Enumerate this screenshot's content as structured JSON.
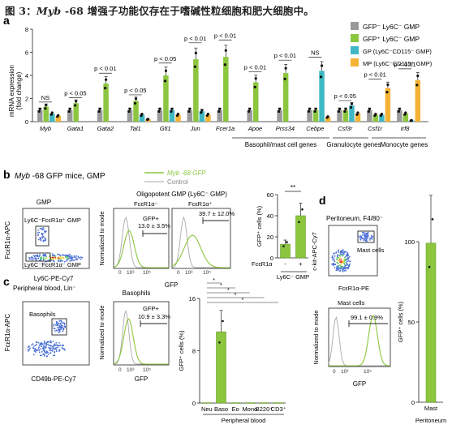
{
  "caption": {
    "prefix": "图 3：",
    "gene": "Myb",
    "suffix": " -68 增强子功能仅存在于嗜碱性粒细胞和肥大细胞中。"
  },
  "panel_labels": [
    "a",
    "b",
    "c",
    "d"
  ],
  "panel_a": {
    "ylabel": "mRNA expression",
    "ylabel2": "(fold change)",
    "legend": [
      {
        "label": "GFP⁻ Ly6C⁻ GMP",
        "color": "#9a9a9a"
      },
      {
        "label": "GFP⁺ Ly6C⁻ GMP",
        "color": "#8cc63f"
      },
      {
        "label": "GP (Ly6C⁻CD115⁻ GMP)",
        "color": "#3fb8c4"
      },
      {
        "label": "MP (Ly6C⁻CD115⁺ GMP)",
        "color": "#f5b335"
      }
    ],
    "groups": [
      {
        "label": "Basophil/mast cell genes"
      },
      {
        "label": "Granulocyte genes"
      },
      {
        "label": "Monocyte genes"
      }
    ]
  },
  "chart_data": [
    {
      "type": "bar",
      "panel": "a",
      "ylabel": "mRNA expression (fold change)",
      "ylim": [
        0,
        8
      ],
      "yticks": [
        0,
        2,
        4,
        6,
        8
      ],
      "categories": [
        "Myb",
        "Gata1",
        "Gata2",
        "Tal1",
        "Gfi1",
        "Jun",
        "Fcer1a",
        "Apoe",
        "Prss34",
        "Cebpe",
        "Csf3r",
        "Csf1r",
        "Irf8"
      ],
      "series": [
        {
          "name": "GFP⁻ Ly6C⁻ GMP",
          "values": [
            1,
            1,
            1,
            1,
            1,
            1,
            1,
            1,
            1,
            1,
            1,
            1,
            1
          ]
        },
        {
          "name": "GFP⁺ Ly6C⁻ GMP",
          "values": [
            1.3,
            1.6,
            3.3,
            1.8,
            4.0,
            5.4,
            5.6,
            3.4,
            4.2,
            1.0,
            1.0,
            0.6,
            0.7
          ]
        },
        {
          "name": "GP (Ly6C⁻CD115⁻ GMP)",
          "values": [
            0.7,
            null,
            null,
            0.6,
            1.0,
            0.9,
            null,
            null,
            null,
            4.4,
            1.4,
            0.6,
            0.1
          ]
        },
        {
          "name": "MP (Ly6C⁻CD115⁺ GMP)",
          "values": [
            0.5,
            null,
            null,
            0.2,
            0.6,
            0.6,
            null,
            null,
            null,
            0.4,
            0.7,
            2.9,
            3.6
          ]
        }
      ],
      "annotations": [
        "NS",
        "p < 0.05",
        "p < 0.01",
        "p < 0.05",
        "p < 0.05",
        "p < 0.01",
        "p < 0.01",
        "p < 0.01",
        "p < 0.01",
        "NS",
        "p < 0.05",
        "p < 0.01",
        "p < 0.01"
      ]
    },
    {
      "type": "bar",
      "panel": "b",
      "title": "",
      "ylabel": "GFP⁺ cells (%)",
      "ylim": [
        0,
        60
      ],
      "yticks": [
        0,
        20,
        40,
        60
      ],
      "categories": [
        "-",
        "+"
      ],
      "xrow_label": "FcεR1α",
      "xgroup": "Ly6C⁻ GMP",
      "values": [
        13,
        40
      ],
      "annotations": [
        "**"
      ]
    },
    {
      "type": "bar",
      "panel": "c",
      "ylabel": "GFP⁺ cells (%)",
      "ylim": [
        0,
        16
      ],
      "yticks": [
        0,
        8,
        16
      ],
      "categories": [
        "Neu",
        "Baso",
        "Eo",
        "Mono",
        "B220⁺",
        "CD3⁺"
      ],
      "xgroup": "Peripheral blood",
      "values": [
        0.05,
        10.9,
        0.05,
        0.05,
        0.05,
        0.05
      ],
      "annotations": [
        "*",
        "*",
        "*",
        "*",
        "*"
      ]
    },
    {
      "type": "bar",
      "panel": "d",
      "ylabel": "GFP⁺ cells (%)",
      "ylim": [
        0,
        100
      ],
      "yticks": [
        0,
        50,
        100
      ],
      "categories": [
        "Mast"
      ],
      "xgroup": "Peritoneum",
      "values": [
        99.1
      ]
    }
  ],
  "panel_b": {
    "title_gene": "Myb",
    "title_rest": " -68 GFP mice, GMP",
    "legend_gfp": "Myb -68 GFP",
    "legend_control": "Control",
    "gmp_title": "GMP",
    "gate1": "Ly6C⁻FcεR1α⁺ GMP",
    "gate2": "Ly6C⁻FcεR1α⁻ GMP",
    "y_axis": "FcεR1α-APC",
    "x_axis": "Ly6C-PE-Cy7",
    "hist_title": "Oligopotent GMP (Ly6C⁻ GMP)",
    "hist_sub1": "FcεR1α⁻",
    "hist_sub2": "FcεR1α⁺",
    "hist_gfp": "GFP+",
    "hist_val1": "13.0 ± 3.5%",
    "hist_val2": "39.7 ± 12.0%",
    "hist_ylabel": "Normalized to mode",
    "hist_xlabel": "GFP"
  },
  "panel_c": {
    "title": "Peripheral blood, Lin⁻",
    "gate": "Basophils",
    "y_axis": "FcεR1α-APC",
    "x_axis": "CD49b-PE-Cy7",
    "hist_title": "Basophils",
    "hist_gfp": "GFP+",
    "hist_val": "10.9 ± 3.3%",
    "hist_ylabel": "Normalized to mode",
    "hist_xlabel": "GFP"
  },
  "panel_d": {
    "title": "Peritoneum, F4/80⁻",
    "gate": "Mast cells",
    "y_axis": "c-kit-APC-Cy7",
    "x_axis": "FcεR1α-PE",
    "hist_title": "Mast cells",
    "hist_val": "99.1 ± 0.9%",
    "hist_ylabel": "Normalized to mode",
    "hist_xlabel": "GFP"
  },
  "colors": {
    "gray": "#9a9a9a",
    "green": "#8cc63f",
    "cyan": "#3fb8c4",
    "orange": "#f5b335",
    "dark_green": "#5a8f1f"
  }
}
